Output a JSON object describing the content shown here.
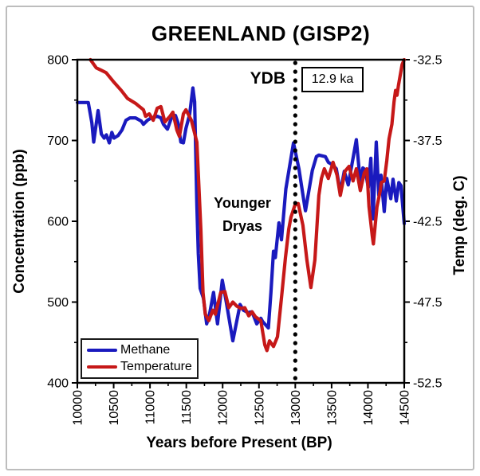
{
  "title": "GREENLAND (GISP2)",
  "colors": {
    "methane": "#1a1abe",
    "temperature": "#c61818",
    "axis": "#000000",
    "dotted_line": "#000000",
    "figure_border": "#bdbdbd"
  },
  "axes": {
    "x": {
      "label": "Years before Present (BP)",
      "min": 10000,
      "max": 14500,
      "major_ticks": [
        10000,
        10500,
        11000,
        11500,
        12000,
        12500,
        13000,
        13500,
        14000,
        14500
      ],
      "minor_step": 250
    },
    "y_left": {
      "label": "Concentration (ppb)",
      "min": 400,
      "max": 800,
      "major_ticks": [
        400,
        500,
        600,
        700,
        800
      ],
      "minor_step": 50
    },
    "y_right": {
      "label": "Temp (deg. C)",
      "min": -52.5,
      "max": -32.5,
      "major_ticks": [
        -52.5,
        -47.5,
        -42.5,
        -37.5,
        -32.5
      ],
      "minor_step": 2.5
    }
  },
  "annotations": {
    "ydb_label": "YDB",
    "ydb_box_text": "12.9 ka",
    "ydb_year": 13000,
    "event_line1": "Younger",
    "event_line2": "Dryas"
  },
  "legend": [
    {
      "label": "Methane",
      "color_key": "methane"
    },
    {
      "label": "Temperature",
      "color_key": "temperature"
    }
  ],
  "chart_data": {
    "type": "line",
    "title": "GREENLAND (GISP2)",
    "xlabel": "Years before Present (BP)",
    "ylabel_left": "Concentration (ppb)",
    "ylabel_right": "Temp (deg. C)",
    "xlim": [
      10000,
      14500
    ],
    "ylim_left": [
      400,
      800
    ],
    "ylim_right": [
      -52.5,
      -32.5
    ],
    "grid": false,
    "legend_position": "lower-left",
    "series": [
      {
        "name": "Methane",
        "axis": "left",
        "units": "ppb",
        "color_key": "methane",
        "points": [
          [
            10000,
            747
          ],
          [
            10150,
            747
          ],
          [
            10200,
            722
          ],
          [
            10225,
            698
          ],
          [
            10285,
            737
          ],
          [
            10330,
            708
          ],
          [
            10370,
            703
          ],
          [
            10400,
            707
          ],
          [
            10440,
            697
          ],
          [
            10475,
            710
          ],
          [
            10505,
            703
          ],
          [
            10560,
            706
          ],
          [
            10615,
            713
          ],
          [
            10670,
            725
          ],
          [
            10725,
            728
          ],
          [
            10800,
            728
          ],
          [
            10880,
            724
          ],
          [
            10910,
            720
          ],
          [
            10965,
            725
          ],
          [
            11020,
            728
          ],
          [
            11100,
            730
          ],
          [
            11150,
            728
          ],
          [
            11185,
            720
          ],
          [
            11240,
            714
          ],
          [
            11295,
            728
          ],
          [
            11350,
            731
          ],
          [
            11385,
            722
          ],
          [
            11425,
            698
          ],
          [
            11460,
            697
          ],
          [
            11495,
            715
          ],
          [
            11545,
            732
          ],
          [
            11590,
            765
          ],
          [
            11615,
            748
          ],
          [
            11645,
            620
          ],
          [
            11665,
            560
          ],
          [
            11690,
            517
          ],
          [
            11735,
            505
          ],
          [
            11780,
            473
          ],
          [
            11820,
            485
          ],
          [
            11875,
            512
          ],
          [
            11930,
            473
          ],
          [
            11995,
            527
          ],
          [
            12050,
            500
          ],
          [
            12140,
            452
          ],
          [
            12240,
            497
          ],
          [
            12285,
            490
          ],
          [
            12350,
            487
          ],
          [
            12405,
            488
          ],
          [
            12470,
            473
          ],
          [
            12525,
            480
          ],
          [
            12550,
            476
          ],
          [
            12630,
            468
          ],
          [
            12665,
            512
          ],
          [
            12700,
            563
          ],
          [
            12725,
            555
          ],
          [
            12775,
            598
          ],
          [
            12810,
            577
          ],
          [
            12870,
            640
          ],
          [
            12975,
            697
          ],
          [
            13050,
            665
          ],
          [
            13130,
            618
          ],
          [
            13140,
            613
          ],
          [
            13235,
            663
          ],
          [
            13290,
            680
          ],
          [
            13325,
            682
          ],
          [
            13415,
            680
          ],
          [
            13455,
            673
          ],
          [
            13510,
            670
          ],
          [
            13565,
            665
          ],
          [
            13620,
            636
          ],
          [
            13675,
            662
          ],
          [
            13730,
            645
          ],
          [
            13840,
            701
          ],
          [
            13895,
            648
          ],
          [
            13930,
            666
          ],
          [
            13960,
            664
          ],
          [
            14005,
            642
          ],
          [
            14040,
            678
          ],
          [
            14070,
            603
          ],
          [
            14115,
            698
          ],
          [
            14150,
            632
          ],
          [
            14180,
            657
          ],
          [
            14225,
            612
          ],
          [
            14260,
            653
          ],
          [
            14315,
            628
          ],
          [
            14345,
            652
          ],
          [
            14390,
            625
          ],
          [
            14425,
            648
          ],
          [
            14455,
            644
          ],
          [
            14500,
            597
          ]
        ]
      },
      {
        "name": "Temperature",
        "axis": "right",
        "units": "deg C",
        "color_key": "temperature",
        "points": [
          [
            10180,
            -32.5
          ],
          [
            10260,
            -33.0
          ],
          [
            10395,
            -33.3
          ],
          [
            10505,
            -33.9
          ],
          [
            10605,
            -34.4
          ],
          [
            10690,
            -34.9
          ],
          [
            10800,
            -35.2
          ],
          [
            10855,
            -35.4
          ],
          [
            10910,
            -35.6
          ],
          [
            10940,
            -36.0
          ],
          [
            10990,
            -35.85
          ],
          [
            11045,
            -36.25
          ],
          [
            11100,
            -35.5
          ],
          [
            11150,
            -35.4
          ],
          [
            11205,
            -36.35
          ],
          [
            11275,
            -36.0
          ],
          [
            11315,
            -35.75
          ],
          [
            11370,
            -36.85
          ],
          [
            11405,
            -37.25
          ],
          [
            11460,
            -35.85
          ],
          [
            11495,
            -35.6
          ],
          [
            11570,
            -36.25
          ],
          [
            11645,
            -37.6
          ],
          [
            11700,
            -43.0
          ],
          [
            11730,
            -46.9
          ],
          [
            11760,
            -48.25
          ],
          [
            11810,
            -48.65
          ],
          [
            11865,
            -48.0
          ],
          [
            11900,
            -48.25
          ],
          [
            11975,
            -46.9
          ],
          [
            12030,
            -46.85
          ],
          [
            12085,
            -47.85
          ],
          [
            12140,
            -47.5
          ],
          [
            12195,
            -47.75
          ],
          [
            12250,
            -47.9
          ],
          [
            12305,
            -47.85
          ],
          [
            12360,
            -48.35
          ],
          [
            12405,
            -48.1
          ],
          [
            12450,
            -48.4
          ],
          [
            12525,
            -48.65
          ],
          [
            12580,
            -50.15
          ],
          [
            12610,
            -50.5
          ],
          [
            12645,
            -49.9
          ],
          [
            12700,
            -50.25
          ],
          [
            12755,
            -49.65
          ],
          [
            12810,
            -47.25
          ],
          [
            12865,
            -44.75
          ],
          [
            12910,
            -43.0
          ],
          [
            12940,
            -42.25
          ],
          [
            12995,
            -41.5
          ],
          [
            13040,
            -41.4
          ],
          [
            13105,
            -42.75
          ],
          [
            13160,
            -44.9
          ],
          [
            13215,
            -46.6
          ],
          [
            13270,
            -44.9
          ],
          [
            13325,
            -40.9
          ],
          [
            13360,
            -39.85
          ],
          [
            13400,
            -39.25
          ],
          [
            13455,
            -39.85
          ],
          [
            13520,
            -38.85
          ],
          [
            13575,
            -39.65
          ],
          [
            13620,
            -40.9
          ],
          [
            13685,
            -39.4
          ],
          [
            13740,
            -39.1
          ],
          [
            13795,
            -40.0
          ],
          [
            13840,
            -39.25
          ],
          [
            13895,
            -40.6
          ],
          [
            13950,
            -39.5
          ],
          [
            13985,
            -39.25
          ],
          [
            14015,
            -41.6
          ],
          [
            14060,
            -43.4
          ],
          [
            14075,
            -43.9
          ],
          [
            14125,
            -41.6
          ],
          [
            14170,
            -40.6
          ],
          [
            14185,
            -40.1
          ],
          [
            14225,
            -40.0
          ],
          [
            14260,
            -38.75
          ],
          [
            14290,
            -37.4
          ],
          [
            14330,
            -36.5
          ],
          [
            14360,
            -35.1
          ],
          [
            14380,
            -34.4
          ],
          [
            14400,
            -34.7
          ],
          [
            14420,
            -34.1
          ],
          [
            14470,
            -32.8
          ],
          [
            14500,
            -32.5
          ]
        ]
      }
    ]
  }
}
